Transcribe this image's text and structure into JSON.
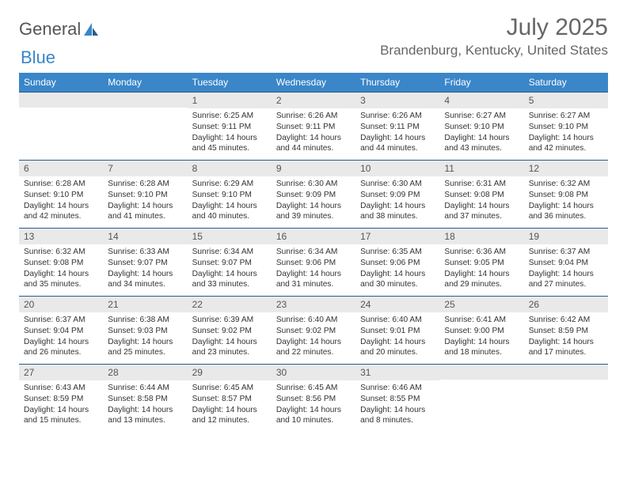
{
  "logo": {
    "text1": "General",
    "text2": "Blue"
  },
  "title": "July 2025",
  "location": "Brandenburg, Kentucky, United States",
  "colors": {
    "header_bg": "#3a86c8",
    "daynum_bg": "#e9e9e9",
    "rule": "#2a5d8a",
    "text": "#333333",
    "muted": "#666666"
  },
  "weekdays": [
    "Sunday",
    "Monday",
    "Tuesday",
    "Wednesday",
    "Thursday",
    "Friday",
    "Saturday"
  ],
  "weeks": [
    [
      {
        "n": "",
        "sr": "",
        "ss": "",
        "dl": ""
      },
      {
        "n": "",
        "sr": "",
        "ss": "",
        "dl": ""
      },
      {
        "n": "1",
        "sr": "Sunrise: 6:25 AM",
        "ss": "Sunset: 9:11 PM",
        "dl": "Daylight: 14 hours and 45 minutes."
      },
      {
        "n": "2",
        "sr": "Sunrise: 6:26 AM",
        "ss": "Sunset: 9:11 PM",
        "dl": "Daylight: 14 hours and 44 minutes."
      },
      {
        "n": "3",
        "sr": "Sunrise: 6:26 AM",
        "ss": "Sunset: 9:11 PM",
        "dl": "Daylight: 14 hours and 44 minutes."
      },
      {
        "n": "4",
        "sr": "Sunrise: 6:27 AM",
        "ss": "Sunset: 9:10 PM",
        "dl": "Daylight: 14 hours and 43 minutes."
      },
      {
        "n": "5",
        "sr": "Sunrise: 6:27 AM",
        "ss": "Sunset: 9:10 PM",
        "dl": "Daylight: 14 hours and 42 minutes."
      }
    ],
    [
      {
        "n": "6",
        "sr": "Sunrise: 6:28 AM",
        "ss": "Sunset: 9:10 PM",
        "dl": "Daylight: 14 hours and 42 minutes."
      },
      {
        "n": "7",
        "sr": "Sunrise: 6:28 AM",
        "ss": "Sunset: 9:10 PM",
        "dl": "Daylight: 14 hours and 41 minutes."
      },
      {
        "n": "8",
        "sr": "Sunrise: 6:29 AM",
        "ss": "Sunset: 9:10 PM",
        "dl": "Daylight: 14 hours and 40 minutes."
      },
      {
        "n": "9",
        "sr": "Sunrise: 6:30 AM",
        "ss": "Sunset: 9:09 PM",
        "dl": "Daylight: 14 hours and 39 minutes."
      },
      {
        "n": "10",
        "sr": "Sunrise: 6:30 AM",
        "ss": "Sunset: 9:09 PM",
        "dl": "Daylight: 14 hours and 38 minutes."
      },
      {
        "n": "11",
        "sr": "Sunrise: 6:31 AM",
        "ss": "Sunset: 9:08 PM",
        "dl": "Daylight: 14 hours and 37 minutes."
      },
      {
        "n": "12",
        "sr": "Sunrise: 6:32 AM",
        "ss": "Sunset: 9:08 PM",
        "dl": "Daylight: 14 hours and 36 minutes."
      }
    ],
    [
      {
        "n": "13",
        "sr": "Sunrise: 6:32 AM",
        "ss": "Sunset: 9:08 PM",
        "dl": "Daylight: 14 hours and 35 minutes."
      },
      {
        "n": "14",
        "sr": "Sunrise: 6:33 AM",
        "ss": "Sunset: 9:07 PM",
        "dl": "Daylight: 14 hours and 34 minutes."
      },
      {
        "n": "15",
        "sr": "Sunrise: 6:34 AM",
        "ss": "Sunset: 9:07 PM",
        "dl": "Daylight: 14 hours and 33 minutes."
      },
      {
        "n": "16",
        "sr": "Sunrise: 6:34 AM",
        "ss": "Sunset: 9:06 PM",
        "dl": "Daylight: 14 hours and 31 minutes."
      },
      {
        "n": "17",
        "sr": "Sunrise: 6:35 AM",
        "ss": "Sunset: 9:06 PM",
        "dl": "Daylight: 14 hours and 30 minutes."
      },
      {
        "n": "18",
        "sr": "Sunrise: 6:36 AM",
        "ss": "Sunset: 9:05 PM",
        "dl": "Daylight: 14 hours and 29 minutes."
      },
      {
        "n": "19",
        "sr": "Sunrise: 6:37 AM",
        "ss": "Sunset: 9:04 PM",
        "dl": "Daylight: 14 hours and 27 minutes."
      }
    ],
    [
      {
        "n": "20",
        "sr": "Sunrise: 6:37 AM",
        "ss": "Sunset: 9:04 PM",
        "dl": "Daylight: 14 hours and 26 minutes."
      },
      {
        "n": "21",
        "sr": "Sunrise: 6:38 AM",
        "ss": "Sunset: 9:03 PM",
        "dl": "Daylight: 14 hours and 25 minutes."
      },
      {
        "n": "22",
        "sr": "Sunrise: 6:39 AM",
        "ss": "Sunset: 9:02 PM",
        "dl": "Daylight: 14 hours and 23 minutes."
      },
      {
        "n": "23",
        "sr": "Sunrise: 6:40 AM",
        "ss": "Sunset: 9:02 PM",
        "dl": "Daylight: 14 hours and 22 minutes."
      },
      {
        "n": "24",
        "sr": "Sunrise: 6:40 AM",
        "ss": "Sunset: 9:01 PM",
        "dl": "Daylight: 14 hours and 20 minutes."
      },
      {
        "n": "25",
        "sr": "Sunrise: 6:41 AM",
        "ss": "Sunset: 9:00 PM",
        "dl": "Daylight: 14 hours and 18 minutes."
      },
      {
        "n": "26",
        "sr": "Sunrise: 6:42 AM",
        "ss": "Sunset: 8:59 PM",
        "dl": "Daylight: 14 hours and 17 minutes."
      }
    ],
    [
      {
        "n": "27",
        "sr": "Sunrise: 6:43 AM",
        "ss": "Sunset: 8:59 PM",
        "dl": "Daylight: 14 hours and 15 minutes."
      },
      {
        "n": "28",
        "sr": "Sunrise: 6:44 AM",
        "ss": "Sunset: 8:58 PM",
        "dl": "Daylight: 14 hours and 13 minutes."
      },
      {
        "n": "29",
        "sr": "Sunrise: 6:45 AM",
        "ss": "Sunset: 8:57 PM",
        "dl": "Daylight: 14 hours and 12 minutes."
      },
      {
        "n": "30",
        "sr": "Sunrise: 6:45 AM",
        "ss": "Sunset: 8:56 PM",
        "dl": "Daylight: 14 hours and 10 minutes."
      },
      {
        "n": "31",
        "sr": "Sunrise: 6:46 AM",
        "ss": "Sunset: 8:55 PM",
        "dl": "Daylight: 14 hours and 8 minutes."
      },
      {
        "n": "",
        "sr": "",
        "ss": "",
        "dl": ""
      },
      {
        "n": "",
        "sr": "",
        "ss": "",
        "dl": ""
      }
    ]
  ]
}
